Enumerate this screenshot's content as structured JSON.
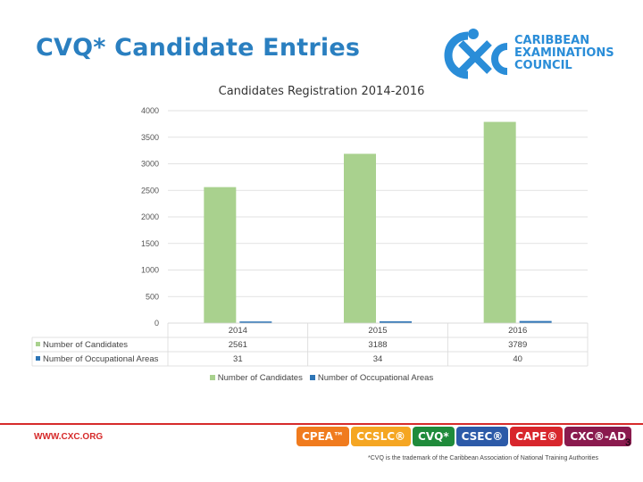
{
  "slide": {
    "title": "CVQ* Candidate Entries",
    "page_number": "3",
    "logo_text": [
      "CARIBBEAN",
      "EXAMINATIONS",
      "COUNCIL"
    ],
    "footer_url": "WWW.CXC.ORG",
    "footnote": "*CVQ is the trademark of the Caribbean Association of National Training Authorities",
    "badges": [
      {
        "label": "CPEA™",
        "color": "#f07b1e"
      },
      {
        "label": "CCSLC®",
        "color": "#f5a623"
      },
      {
        "label": "CVQ*",
        "color": "#1f8b3b"
      },
      {
        "label": "CSEC®",
        "color": "#2c5aa8"
      },
      {
        "label": "CAPE®",
        "color": "#d8262c"
      },
      {
        "label": "CXC®-AD",
        "color": "#8a1a4e"
      }
    ]
  },
  "chart_data": {
    "type": "bar",
    "title": "Candidates Registration 2014-2016",
    "categories": [
      "2014",
      "2015",
      "2016"
    ],
    "series": [
      {
        "name": "Number of Candidates",
        "values": [
          2561,
          3188,
          3789
        ],
        "color": "#a9d18e"
      },
      {
        "name": "Number of Occupational Areas",
        "values": [
          31,
          34,
          40
        ],
        "color": "#2e75b6"
      }
    ],
    "ylim": [
      0,
      4000
    ],
    "yticks": [
      "0",
      "500",
      "1000",
      "1500",
      "2000",
      "2500",
      "3000",
      "3500",
      "4000"
    ],
    "grid": true,
    "legend": "bottom",
    "data_table": true
  }
}
